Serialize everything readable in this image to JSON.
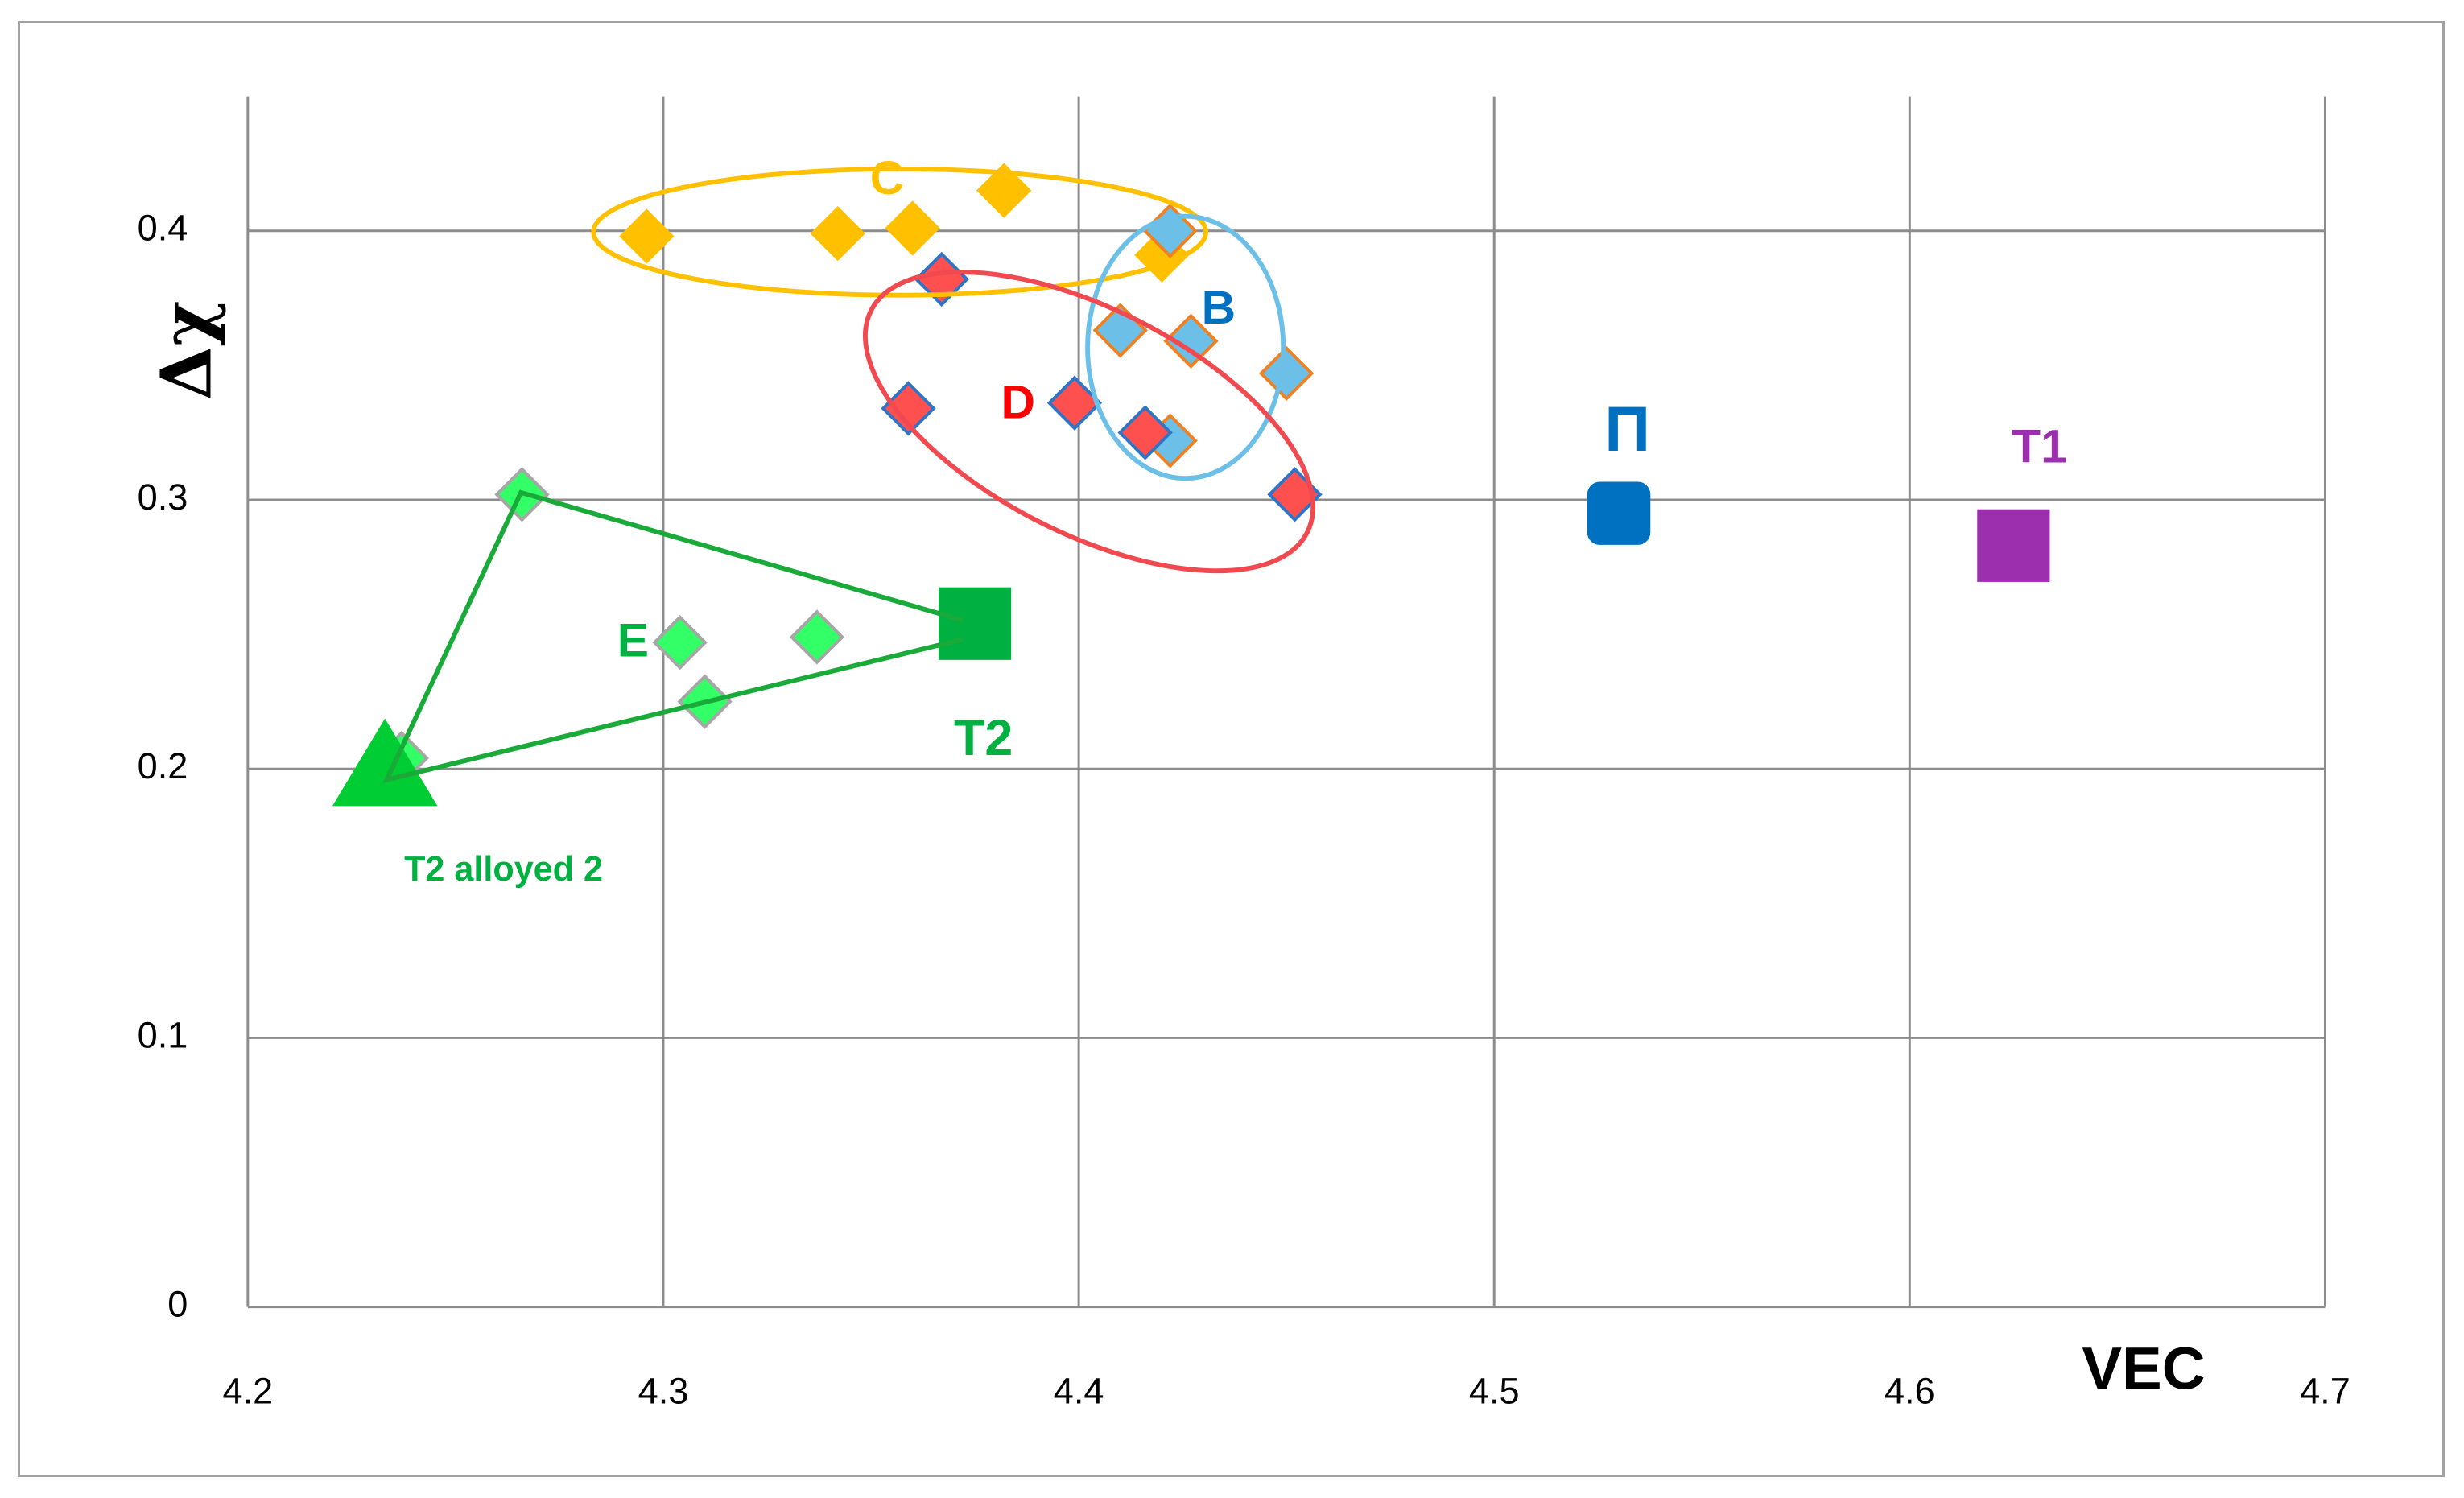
{
  "chart_data": {
    "type": "scatter",
    "x_label": "VEC",
    "y_label": "Δχ",
    "xlim": [
      4.2,
      4.7
    ],
    "xticks": [
      4.2,
      4.3,
      4.4,
      4.5,
      4.6,
      4.7
    ],
    "ylim": [
      0,
      0.45
    ],
    "yticks": [
      0,
      0.1,
      0.2,
      0.3,
      0.4
    ],
    "grid": true,
    "series": [
      {
        "name": "C",
        "color": "#ffc000",
        "edge": "#ffc000",
        "marker": "diamond",
        "x": [
          4.296,
          4.342,
          4.36,
          4.382,
          4.42
        ],
        "values": [
          0.398,
          0.399,
          0.401,
          0.415,
          0.391
        ]
      },
      {
        "name": "B",
        "color": "#6cc0e8",
        "edge": "#f08020",
        "marker": "diamond",
        "x": [
          4.422,
          4.41,
          4.427,
          4.45,
          4.422
        ],
        "values": [
          0.4,
          0.363,
          0.359,
          0.347,
          0.322
        ]
      },
      {
        "name": "D",
        "color": "#ff5050",
        "edge": "#2e75c8",
        "marker": "diamond",
        "x": [
          4.367,
          4.359,
          4.399,
          4.416,
          4.452
        ],
        "values": [
          0.382,
          0.334,
          0.336,
          0.325,
          0.302
        ]
      },
      {
        "name": "E",
        "color": "#33ff66",
        "edge": "#a6a6a6",
        "marker": "diamond",
        "x": [
          4.266,
          4.304,
          4.31,
          4.337,
          4.237
        ],
        "values": [
          0.302,
          0.247,
          0.225,
          0.249,
          0.204
        ]
      },
      {
        "name": "T2",
        "color": "#00b040",
        "edge": "#00b040",
        "marker": "square",
        "x": [
          4.375
        ],
        "values": [
          0.254
        ]
      },
      {
        "name": "T2 alloyed 2",
        "color": "#00cc33",
        "edge": "#00cc33",
        "marker": "triangle",
        "x": [
          4.233
        ],
        "values": [
          0.2
        ]
      },
      {
        "name": "Π",
        "color": "#0070c0",
        "edge": "#0070c0",
        "marker": "round-square",
        "x": [
          4.53
        ],
        "values": [
          0.295
        ]
      },
      {
        "name": "T1",
        "color": "#9b2fae",
        "edge": "#9b2fae",
        "marker": "square",
        "x": [
          4.625
        ],
        "values": [
          0.283
        ]
      }
    ]
  }
}
